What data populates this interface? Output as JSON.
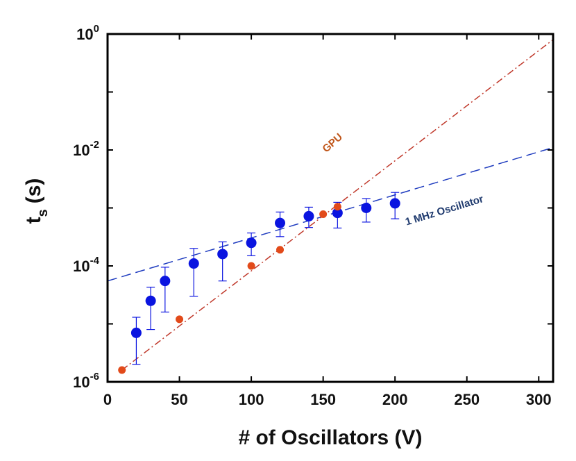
{
  "chart_data": {
    "type": "scatter",
    "title": "",
    "xlabel": "# of Oscillators (V)",
    "ylabel_main": "t",
    "ylabel_sub": "s",
    "ylabel_unit": "(s)",
    "xlim": [
      0,
      310
    ],
    "ylim": [
      1e-06,
      1
    ],
    "yscale": "log",
    "grid": false,
    "x_ticks": [
      0,
      50,
      100,
      150,
      200,
      250,
      300
    ],
    "y_ticks": [
      {
        "value": 1e-06,
        "base": "10",
        "exp": "-6"
      },
      {
        "value": 0.0001,
        "base": "10",
        "exp": "-4"
      },
      {
        "value": 0.01,
        "base": "10",
        "exp": "-2"
      },
      {
        "value": 1,
        "base": "10",
        "exp": "0"
      }
    ],
    "series": [
      {
        "name": "1 MHz Oscillator",
        "color": "#0a14e0",
        "marker": "circle",
        "x": [
          20,
          30,
          40,
          60,
          80,
          100,
          120,
          140,
          160,
          180,
          200
        ],
        "y": [
          7e-06,
          2.5e-05,
          5.5e-05,
          0.00011,
          0.00016,
          0.00025,
          0.00055,
          0.00072,
          0.00082,
          0.001,
          0.0012
        ],
        "err_low": [
          2e-06,
          8e-06,
          1.6e-05,
          3e-05,
          5.5e-05,
          0.00015,
          0.00032,
          0.00046,
          0.00045,
          0.00057,
          0.00065
        ],
        "err_high": [
          1.3e-05,
          4.3e-05,
          9.5e-05,
          0.0002,
          0.00026,
          0.00037,
          0.00085,
          0.00103,
          0.00125,
          0.00145,
          0.00185
        ]
      },
      {
        "name": "GPU",
        "color": "#e24a1a",
        "marker": "circle",
        "x": [
          10,
          50,
          100,
          120,
          150,
          160
        ],
        "y": [
          1.6e-06,
          1.2e-05,
          0.0001,
          0.00019,
          0.00078,
          0.00105
        ]
      }
    ],
    "fit_lines": [
      {
        "series": "1 MHz Oscillator",
        "color": "#1f3cbf",
        "style": "dashed",
        "x": [
          0,
          310
        ],
        "y": [
          5.5e-05,
          0.011
        ]
      },
      {
        "series": "GPU",
        "color": "#c0392b",
        "style": "dashdot",
        "x": [
          10,
          310
        ],
        "y": [
          1.6e-06,
          0.8
        ]
      }
    ],
    "annotations": [
      {
        "text": "GPU",
        "color": "#c0561a",
        "x": 158,
        "y": 0.012,
        "angle": -42
      },
      {
        "text": "1 MHz Oscillator",
        "color": "#1f3a6e",
        "x": 235,
        "y": 0.0008,
        "angle": -17
      }
    ]
  }
}
